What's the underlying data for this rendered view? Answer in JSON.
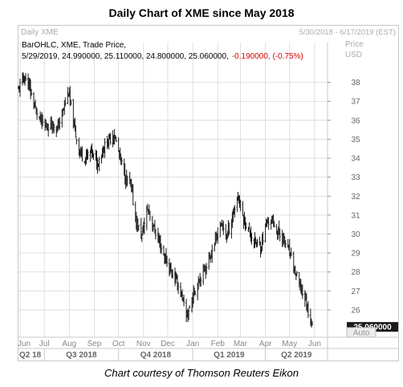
{
  "title": "Daily Chart of XME since May 2018",
  "caption": "Chart courtesy of Thomson Reuters Eikon",
  "header": {
    "left": "Daily XME",
    "range": "5/30/2018 - 6/17/2019 (EST)"
  },
  "legend": {
    "line1": "BarOHLC, XME, Trade Price,",
    "line2_values": "5/29/2019, 24.990000, 25.110000, 24.800000, 25.060000,",
    "line2_change": "-0.190000, (-0.75%)"
  },
  "axis_header": {
    "price": "Price",
    "currency": "USD"
  },
  "last_price_label": "25.060000",
  "auto_label": "Auto",
  "colors": {
    "bars": "#1a1a1a",
    "grid": "#d8d8d8",
    "change_negative": "#d40000",
    "last_price_bg": "#1a1a1a"
  },
  "chart_data": {
    "type": "bar",
    "subtype": "OHLC",
    "series_name": "XME",
    "x_axis": {
      "months": [
        "Jun",
        "Jul",
        "Aug",
        "Sep",
        "Oct",
        "Nov",
        "Dec",
        "Jan",
        "Feb",
        "Mar",
        "Apr",
        "May",
        "Jun"
      ],
      "quarters": [
        "Q2 18",
        "Q3 2018",
        "Q4 2018",
        "Q1 2019",
        "Q2 2019"
      ],
      "range": [
        "2018-05-30",
        "2019-06-17"
      ]
    },
    "y_axis": {
      "ticks": [
        26,
        27,
        28,
        29,
        30,
        31,
        32,
        33,
        34,
        35,
        36,
        37,
        38
      ],
      "ylim": [
        24.6,
        39.0
      ]
    },
    "grid": true,
    "close_series": [
      {
        "date": "2018-05-30",
        "close": 37.6
      },
      {
        "date": "2018-06-05",
        "close": 38.3
      },
      {
        "date": "2018-06-12",
        "close": 37.8
      },
      {
        "date": "2018-06-19",
        "close": 36.7
      },
      {
        "date": "2018-06-26",
        "close": 36.0
      },
      {
        "date": "2018-07-03",
        "close": 35.6
      },
      {
        "date": "2018-07-10",
        "close": 35.9
      },
      {
        "date": "2018-07-17",
        "close": 35.5
      },
      {
        "date": "2018-07-24",
        "close": 36.5
      },
      {
        "date": "2018-07-31",
        "close": 37.5
      },
      {
        "date": "2018-08-07",
        "close": 35.6
      },
      {
        "date": "2018-08-14",
        "close": 34.3
      },
      {
        "date": "2018-08-21",
        "close": 34.0
      },
      {
        "date": "2018-08-28",
        "close": 34.4
      },
      {
        "date": "2018-09-04",
        "close": 33.7
      },
      {
        "date": "2018-09-11",
        "close": 34.4
      },
      {
        "date": "2018-09-18",
        "close": 34.9
      },
      {
        "date": "2018-09-25",
        "close": 35.3
      },
      {
        "date": "2018-10-02",
        "close": 34.2
      },
      {
        "date": "2018-10-09",
        "close": 33.0
      },
      {
        "date": "2018-10-16",
        "close": 32.6
      },
      {
        "date": "2018-10-23",
        "close": 30.6
      },
      {
        "date": "2018-10-30",
        "close": 29.9
      },
      {
        "date": "2018-11-06",
        "close": 31.4
      },
      {
        "date": "2018-11-13",
        "close": 30.4
      },
      {
        "date": "2018-11-20",
        "close": 29.6
      },
      {
        "date": "2018-11-27",
        "close": 28.8
      },
      {
        "date": "2018-12-04",
        "close": 28.1
      },
      {
        "date": "2018-12-11",
        "close": 27.6
      },
      {
        "date": "2018-12-18",
        "close": 26.8
      },
      {
        "date": "2018-12-24",
        "close": 25.6
      },
      {
        "date": "2018-12-31",
        "close": 26.5
      },
      {
        "date": "2019-01-08",
        "close": 27.6
      },
      {
        "date": "2019-01-15",
        "close": 28.1
      },
      {
        "date": "2019-01-22",
        "close": 28.8
      },
      {
        "date": "2019-01-29",
        "close": 29.6
      },
      {
        "date": "2019-02-05",
        "close": 30.6
      },
      {
        "date": "2019-02-12",
        "close": 29.9
      },
      {
        "date": "2019-02-19",
        "close": 30.9
      },
      {
        "date": "2019-02-26",
        "close": 32.0
      },
      {
        "date": "2019-03-05",
        "close": 30.8
      },
      {
        "date": "2019-03-12",
        "close": 30.1
      },
      {
        "date": "2019-03-19",
        "close": 29.6
      },
      {
        "date": "2019-03-26",
        "close": 29.3
      },
      {
        "date": "2019-04-02",
        "close": 30.5
      },
      {
        "date": "2019-04-09",
        "close": 30.8
      },
      {
        "date": "2019-04-16",
        "close": 30.1
      },
      {
        "date": "2019-04-23",
        "close": 29.8
      },
      {
        "date": "2019-04-30",
        "close": 29.1
      },
      {
        "date": "2019-05-07",
        "close": 28.1
      },
      {
        "date": "2019-05-14",
        "close": 27.2
      },
      {
        "date": "2019-05-21",
        "close": 26.5
      },
      {
        "date": "2019-05-29",
        "close": 25.06
      }
    ]
  }
}
